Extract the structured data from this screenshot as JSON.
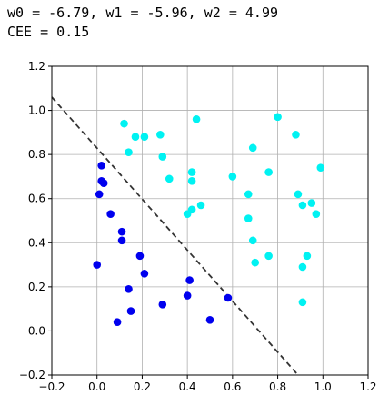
{
  "header": {
    "line1": "w0 = -6.79, w1 = -5.96, w2 = 4.99",
    "line2": "CEE = 0.15"
  },
  "chart_data": {
    "type": "scatter",
    "title": "",
    "xlabel": "",
    "ylabel": "",
    "xlim": [
      -0.2,
      1.2
    ],
    "ylim": [
      -0.2,
      1.2
    ],
    "xticks": [
      -0.2,
      0.0,
      0.2,
      0.4,
      0.6,
      0.8,
      1.0,
      1.2
    ],
    "yticks": [
      -0.2,
      0.0,
      0.2,
      0.4,
      0.6,
      0.8,
      1.0,
      1.2
    ],
    "xtick_labels": [
      "−0.2",
      "0.0",
      "0.2",
      "0.4",
      "0.6",
      "0.8",
      "1.0",
      "1.2"
    ],
    "ytick_labels": [
      "−0.2",
      "0.0",
      "0.2",
      "0.4",
      "0.6",
      "0.8",
      "1.0",
      "1.2"
    ],
    "grid": true,
    "series": [
      {
        "color": "#0000ee",
        "points": [
          [
            0.02,
            0.75
          ],
          [
            0.02,
            0.68
          ],
          [
            0.03,
            0.67
          ],
          [
            0.01,
            0.62
          ],
          [
            0.06,
            0.53
          ],
          [
            0.11,
            0.45
          ],
          [
            0.11,
            0.41
          ],
          [
            0.19,
            0.34
          ],
          [
            0.0,
            0.3
          ],
          [
            0.21,
            0.26
          ],
          [
            0.41,
            0.23
          ],
          [
            0.14,
            0.19
          ],
          [
            0.4,
            0.16
          ],
          [
            0.58,
            0.15
          ],
          [
            0.29,
            0.12
          ],
          [
            0.15,
            0.09
          ],
          [
            0.09,
            0.04
          ],
          [
            0.5,
            0.05
          ]
        ]
      },
      {
        "color": "#00f2f2",
        "points": [
          [
            0.12,
            0.94
          ],
          [
            0.17,
            0.88
          ],
          [
            0.21,
            0.88
          ],
          [
            0.28,
            0.89
          ],
          [
            0.44,
            0.96
          ],
          [
            0.14,
            0.81
          ],
          [
            0.29,
            0.79
          ],
          [
            0.32,
            0.69
          ],
          [
            0.42,
            0.72
          ],
          [
            0.42,
            0.68
          ],
          [
            0.8,
            0.97
          ],
          [
            0.88,
            0.89
          ],
          [
            0.69,
            0.83
          ],
          [
            0.76,
            0.72
          ],
          [
            0.6,
            0.7
          ],
          [
            0.99,
            0.74
          ],
          [
            0.67,
            0.62
          ],
          [
            0.89,
            0.62
          ],
          [
            0.91,
            0.57
          ],
          [
            0.95,
            0.58
          ],
          [
            0.97,
            0.53
          ],
          [
            0.46,
            0.57
          ],
          [
            0.42,
            0.55
          ],
          [
            0.4,
            0.53
          ],
          [
            0.67,
            0.51
          ],
          [
            0.69,
            0.41
          ],
          [
            0.76,
            0.34
          ],
          [
            0.7,
            0.31
          ],
          [
            0.93,
            0.34
          ],
          [
            0.91,
            0.29
          ],
          [
            0.91,
            0.13
          ]
        ]
      }
    ],
    "decision_boundary": {
      "style": "dashed",
      "color": "#333333",
      "x": [
        -0.2,
        0.89
      ],
      "y": [
        1.06,
        -0.2
      ]
    }
  }
}
